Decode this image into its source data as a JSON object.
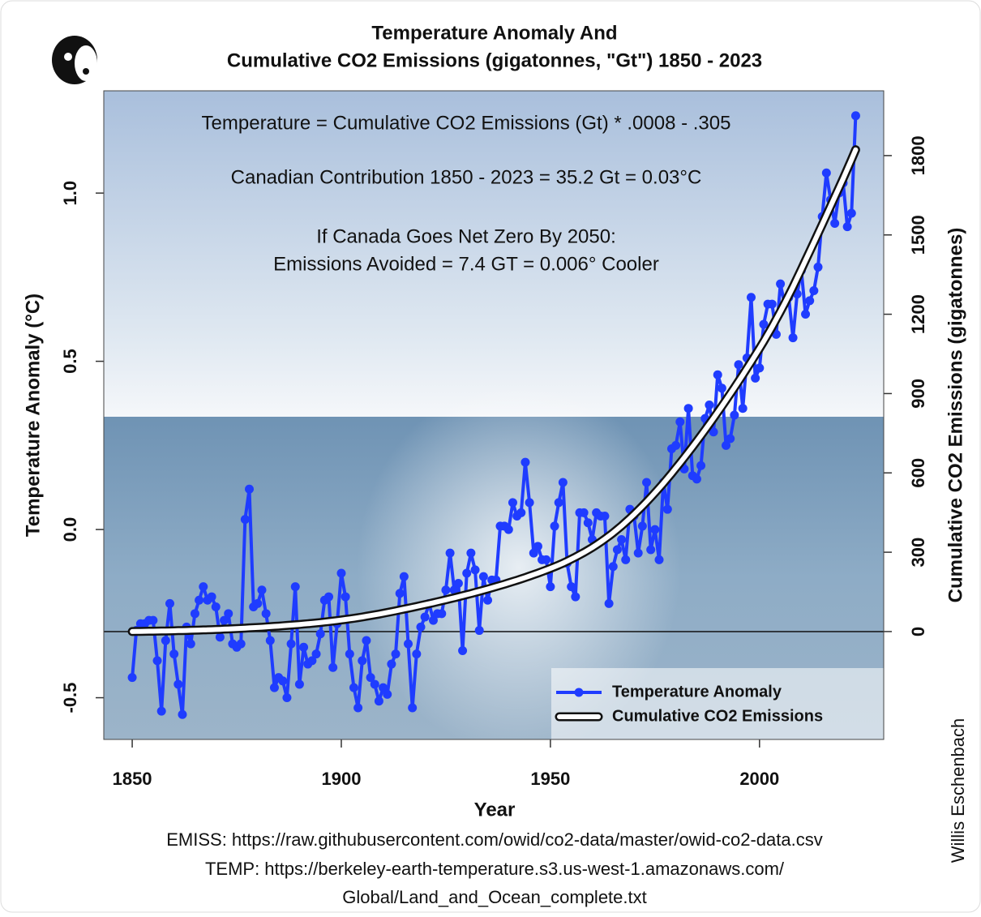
{
  "chart_data": {
    "type": "line",
    "title": [
      "Temperature Anomaly And",
      "Cumulative CO2 Emissions (gigatonnes, \"Gt\") 1850 - 2023"
    ],
    "annotations": [
      "Temperature = Cumulative CO2 Emissions (Gt) * .0008 - .305",
      "Canadian Contribution 1850 - 2023 = 35.2 Gt = 0.03°C",
      "If Canada Goes Net Zero By 2050:",
      "Emissions Avoided = 7.4 GT = 0.006° Cooler"
    ],
    "xlabel": "Year",
    "ylabel": "Temperature Anomaly (°C)",
    "y2label": "Cumulative CO2 Emissions (gigatonnes)",
    "credit": "Willis Eschenbach",
    "sources": [
      "EMISS: https://raw.githubusercontent.com/owid/co2-data/master/owid-co2-data.csv",
      "TEMP: https://berkeley-earth-temperature.s3.us-west-1.amazonaws.com/",
      "Global/Land_and_Ocean_complete.txt"
    ],
    "xlim": [
      1843.2,
      2029.7
    ],
    "xticks": [
      1850,
      1900,
      1950,
      2000
    ],
    "ylim": [
      -0.624,
      1.304
    ],
    "yticks": [
      -0.5,
      {
        "value": 0,
        "label": "0.0"
      },
      0.5,
      {
        "value": 1,
        "label": "1.0"
      }
    ],
    "y2lim": [
      -408,
      2045
    ],
    "y2ticks": [
      0,
      300,
      600,
      900,
      1200,
      1500,
      1800
    ],
    "legend": "bottom-right",
    "x": [
      1850,
      1851,
      1852,
      1853,
      1854,
      1855,
      1856,
      1857,
      1858,
      1859,
      1860,
      1861,
      1862,
      1863,
      1864,
      1865,
      1866,
      1867,
      1868,
      1869,
      1870,
      1871,
      1872,
      1873,
      1874,
      1875,
      1876,
      1877,
      1878,
      1879,
      1880,
      1881,
      1882,
      1883,
      1884,
      1885,
      1886,
      1887,
      1888,
      1889,
      1890,
      1891,
      1892,
      1893,
      1894,
      1895,
      1896,
      1897,
      1898,
      1899,
      1900,
      1901,
      1902,
      1903,
      1904,
      1905,
      1906,
      1907,
      1908,
      1909,
      1910,
      1911,
      1912,
      1913,
      1914,
      1915,
      1916,
      1917,
      1918,
      1919,
      1920,
      1921,
      1922,
      1923,
      1924,
      1925,
      1926,
      1927,
      1928,
      1929,
      1930,
      1931,
      1932,
      1933,
      1934,
      1935,
      1936,
      1937,
      1938,
      1939,
      1940,
      1941,
      1942,
      1943,
      1944,
      1945,
      1946,
      1947,
      1948,
      1949,
      1950,
      1951,
      1952,
      1953,
      1954,
      1955,
      1956,
      1957,
      1958,
      1959,
      1960,
      1961,
      1962,
      1963,
      1964,
      1965,
      1966,
      1967,
      1968,
      1969,
      1970,
      1971,
      1972,
      1973,
      1974,
      1975,
      1976,
      1977,
      1978,
      1979,
      1980,
      1981,
      1982,
      1983,
      1984,
      1985,
      1986,
      1987,
      1988,
      1989,
      1990,
      1991,
      1992,
      1993,
      1994,
      1995,
      1996,
      1997,
      1998,
      1999,
      2000,
      2001,
      2002,
      2003,
      2004,
      2005,
      2006,
      2007,
      2008,
      2009,
      2010,
      2011,
      2012,
      2013,
      2014,
      2015,
      2016,
      2017,
      2018,
      2019,
      2020,
      2021,
      2022,
      2023
    ],
    "series": [
      {
        "name": "Temperature Anomaly",
        "color": "#1f3cff",
        "axis": "y",
        "values": [
          -0.44,
          -0.3,
          -0.28,
          -0.28,
          -0.27,
          -0.27,
          -0.39,
          -0.54,
          -0.33,
          -0.22,
          -0.37,
          -0.46,
          -0.55,
          -0.29,
          -0.34,
          -0.25,
          -0.21,
          -0.17,
          -0.21,
          -0.2,
          -0.23,
          -0.32,
          -0.27,
          -0.25,
          -0.34,
          -0.35,
          -0.34,
          0.03,
          0.12,
          -0.23,
          -0.22,
          -0.18,
          -0.25,
          -0.33,
          -0.47,
          -0.44,
          -0.45,
          -0.5,
          -0.34,
          -0.17,
          -0.46,
          -0.35,
          -0.4,
          -0.39,
          -0.37,
          -0.31,
          -0.21,
          -0.2,
          -0.41,
          -0.28,
          -0.13,
          -0.2,
          -0.37,
          -0.47,
          -0.53,
          -0.39,
          -0.33,
          -0.44,
          -0.46,
          -0.51,
          -0.47,
          -0.49,
          -0.4,
          -0.37,
          -0.19,
          -0.14,
          -0.34,
          -0.53,
          -0.37,
          -0.29,
          -0.26,
          -0.22,
          -0.27,
          -0.25,
          -0.25,
          -0.18,
          -0.07,
          -0.18,
          -0.16,
          -0.36,
          -0.13,
          -0.07,
          -0.12,
          -0.3,
          -0.14,
          -0.21,
          -0.15,
          -0.15,
          0.01,
          0.01,
          0.0,
          0.08,
          0.04,
          0.05,
          0.2,
          0.08,
          -0.07,
          -0.05,
          -0.09,
          -0.09,
          -0.17,
          0.01,
          0.08,
          0.14,
          -0.1,
          -0.17,
          -0.2,
          0.05,
          0.05,
          0.02,
          -0.03,
          0.05,
          0.04,
          0.04,
          -0.22,
          -0.11,
          -0.06,
          -0.03,
          -0.09,
          0.06,
          0.04,
          -0.07,
          0.01,
          0.14,
          -0.06,
          0.0,
          -0.09,
          0.14,
          0.06,
          0.24,
          0.25,
          0.32,
          0.18,
          0.36,
          0.16,
          0.15,
          0.19,
          0.33,
          0.37,
          0.29,
          0.46,
          0.42,
          0.25,
          0.27,
          0.34,
          0.49,
          0.36,
          0.51,
          0.69,
          0.45,
          0.48,
          0.61,
          0.67,
          0.67,
          0.58,
          0.73,
          0.67,
          0.69,
          0.57,
          0.7,
          0.77,
          0.64,
          0.68,
          0.71,
          0.78,
          0.93,
          1.06,
          0.98,
          0.91,
          1.0,
          1.03,
          0.9,
          0.94,
          1.23
        ]
      },
      {
        "name": "Cumulative CO2 Emissions",
        "color": "#ffffff",
        "axis": "y2",
        "values": [
          0.2,
          0.4,
          0.6,
          0.9,
          1.2,
          1.4,
          1.7,
          2.0,
          2.4,
          2.7,
          3.0,
          3.4,
          3.8,
          4.2,
          4.7,
          5.2,
          5.7,
          6.2,
          6.7,
          7.3,
          7.9,
          8.5,
          9.2,
          9.9,
          10.6,
          11.4,
          12.1,
          12.9,
          13.8,
          14.7,
          15.6,
          16.5,
          17.5,
          18.5,
          19.6,
          20.7,
          21.8,
          23.0,
          24.2,
          25.5,
          26.8,
          28.2,
          29.6,
          31.1,
          32.7,
          34.3,
          36.1,
          37.8,
          39.7,
          41.6,
          43.6,
          45.7,
          47.9,
          50.2,
          52.6,
          55.1,
          57.7,
          60.4,
          63.2,
          66.1,
          69.1,
          72.2,
          75.3,
          78.4,
          81.6,
          84.9,
          88.2,
          91.5,
          94.9,
          98.4,
          101.9,
          105.4,
          109.0,
          112.7,
          116.4,
          120.1,
          123.9,
          127.8,
          131.7,
          135.6,
          139.6,
          143.7,
          147.9,
          152.1,
          156.4,
          160.8,
          165.3,
          169.9,
          174.5,
          179.2,
          184.0,
          188.9,
          194.0,
          199.1,
          204.4,
          209.8,
          215.3,
          221.0,
          226.7,
          232.6,
          238.6,
          245.0,
          251.7,
          258.7,
          266.1,
          273.9,
          282.0,
          290.4,
          299.2,
          308.4,
          317.9,
          327.9,
          338.5,
          349.7,
          361.4,
          373.6,
          386.4,
          399.8,
          413.7,
          428.1,
          443.1,
          458.6,
          474.5,
          490.8,
          507.6,
          524.9,
          542.6,
          560.7,
          579.3,
          598.4,
          617.9,
          637.7,
          657.8,
          678.2,
          698.9,
          719.9,
          741.2,
          762.8,
          784.7,
          806.9,
          829.4,
          852.2,
          875.3,
          898.7,
          922.4,
          946.4,
          970.7,
          995.3,
          1020.2,
          1045.4,
          1070.9,
          1097.2,
          1124.3,
          1152.2,
          1180.9,
          1210.4,
          1240.7,
          1271.8,
          1303.7,
          1336.4,
          1369.9,
          1403.6,
          1437.4,
          1471.3,
          1505.4,
          1539.7,
          1574.1,
          1608.6,
          1643.3,
          1678.2,
          1713.2,
          1748.9,
          1785.2,
          1822.2
        ]
      }
    ]
  }
}
